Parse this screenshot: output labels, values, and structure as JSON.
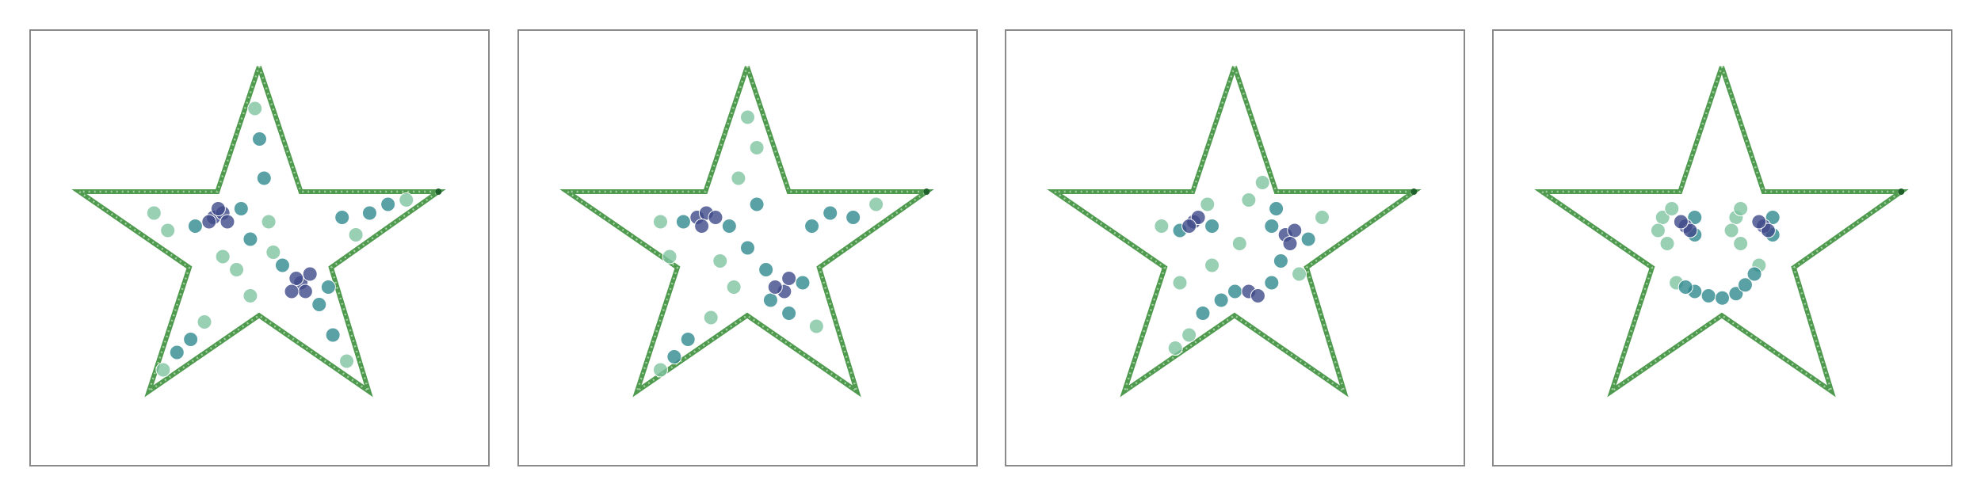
{
  "chart_data": [
    {
      "type": "scatter",
      "xlim": [
        0,
        10
      ],
      "ylim": [
        0,
        10
      ],
      "outline": {
        "color": "#4f9a4f",
        "x": [
          4.99,
          5.9,
          8.9,
          6.56,
          7.38,
          4.99,
          2.59,
          3.47,
          1.07,
          4.08,
          4.99
        ],
        "y": [
          9.16,
          6.29,
          6.29,
          4.55,
          1.71,
          3.45,
          1.71,
          4.55,
          6.29,
          6.29,
          9.16
        ]
      },
      "series": [
        {
          "color": "#3e4a89",
          "x": [
            4.0,
            4.2,
            3.9,
            4.3,
            4.1,
            5.9,
            6.0,
            5.8,
            6.1,
            5.7
          ],
          "y": [
            5.7,
            5.8,
            5.6,
            5.6,
            5.9,
            4.2,
            4.0,
            4.3,
            4.4,
            4.0
          ]
        },
        {
          "color": "#2f8a8e",
          "x": [
            3.6,
            4.6,
            4.8,
            5.5,
            6.3,
            6.5,
            7.4,
            7.8,
            6.8,
            3.5,
            3.2,
            5.0,
            5.1,
            6.6
          ],
          "y": [
            5.5,
            5.9,
            5.2,
            4.6,
            3.7,
            4.1,
            5.8,
            6.0,
            5.7,
            2.9,
            2.6,
            7.5,
            6.6,
            3.0
          ]
        },
        {
          "color": "#7fc3a0",
          "x": [
            3.0,
            2.7,
            4.5,
            4.8,
            5.2,
            8.2,
            7.1,
            3.8,
            2.9,
            4.2,
            6.9,
            5.3,
            4.9
          ],
          "y": [
            5.4,
            5.8,
            4.5,
            3.9,
            5.6,
            6.1,
            5.3,
            3.3,
            2.2,
            4.8,
            2.4,
            4.9,
            8.2
          ]
        }
      ]
    },
    {
      "type": "scatter",
      "xlim": [
        0,
        10
      ],
      "ylim": [
        0,
        10
      ],
      "outline": {
        "color": "#4f9a4f",
        "x": [
          4.99,
          5.9,
          8.9,
          6.56,
          7.38,
          4.99,
          2.59,
          3.47,
          1.07,
          4.08,
          4.99
        ],
        "y": [
          9.16,
          6.29,
          6.29,
          4.55,
          1.71,
          3.45,
          1.71,
          4.55,
          6.29,
          6.29,
          9.16
        ]
      },
      "series": [
        {
          "color": "#3e4a89",
          "x": [
            3.9,
            4.1,
            4.0,
            4.3,
            5.8,
            5.9,
            5.6
          ],
          "y": [
            5.7,
            5.8,
            5.5,
            5.7,
            4.0,
            4.3,
            4.1
          ]
        },
        {
          "color": "#2f8a8e",
          "x": [
            3.6,
            4.6,
            5.0,
            5.4,
            6.2,
            6.8,
            7.3,
            5.9,
            3.7,
            3.4,
            5.2,
            6.4,
            5.5
          ],
          "y": [
            5.6,
            5.5,
            5.0,
            4.5,
            4.2,
            5.8,
            5.7,
            3.5,
            2.9,
            2.5,
            6.0,
            5.5,
            3.8
          ]
        },
        {
          "color": "#7fc3a0",
          "x": [
            3.1,
            3.3,
            4.7,
            5.2,
            5.0,
            7.8,
            4.2,
            3.1,
            6.5,
            4.8,
            4.4
          ],
          "y": [
            5.6,
            4.8,
            4.1,
            7.3,
            8.0,
            6.0,
            3.4,
            2.2,
            3.2,
            6.6,
            4.7
          ]
        }
      ]
    },
    {
      "type": "scatter",
      "xlim": [
        0,
        10
      ],
      "ylim": [
        0,
        10
      ],
      "outline": {
        "color": "#4f9a4f",
        "x": [
          4.99,
          5.9,
          8.9,
          6.56,
          7.38,
          4.99,
          2.59,
          3.47,
          1.07,
          4.08,
          4.99
        ],
        "y": [
          9.16,
          6.29,
          6.29,
          4.55,
          1.71,
          3.45,
          1.71,
          4.55,
          6.29,
          6.29,
          9.16
        ]
      },
      "series": [
        {
          "color": "#3e4a89",
          "x": [
            4.1,
            4.2,
            4.0,
            6.1,
            6.3,
            6.2,
            5.3,
            5.5
          ],
          "y": [
            5.6,
            5.7,
            5.5,
            5.3,
            5.4,
            5.1,
            4.0,
            3.9
          ]
        },
        {
          "color": "#2f8a8e",
          "x": [
            3.8,
            4.5,
            5.8,
            6.6,
            5.0,
            5.8,
            4.3,
            4.7,
            5.9,
            6.0
          ],
          "y": [
            5.4,
            5.5,
            5.5,
            5.2,
            4.0,
            4.2,
            3.5,
            3.8,
            5.9,
            4.7
          ]
        },
        {
          "color": "#7fc3a0",
          "x": [
            3.4,
            4.4,
            5.3,
            6.9,
            4.0,
            3.7,
            4.5,
            5.6,
            5.1,
            6.4,
            3.8
          ],
          "y": [
            5.5,
            6.0,
            6.1,
            5.7,
            3.0,
            2.7,
            4.6,
            6.5,
            5.1,
            4.4,
            4.2
          ]
        }
      ]
    },
    {
      "type": "scatter",
      "xlim": [
        0,
        10
      ],
      "ylim": [
        0,
        10
      ],
      "outline": {
        "color": "#4f9a4f",
        "x": [
          4.99,
          5.9,
          8.9,
          6.56,
          7.38,
          4.99,
          2.59,
          3.47,
          1.07,
          4.08,
          4.99
        ],
        "y": [
          9.16,
          6.29,
          6.29,
          4.55,
          1.71,
          3.45,
          1.71,
          4.55,
          6.29,
          6.29,
          9.16
        ]
      },
      "series": [
        {
          "color": "#3e4a89",
          "x": [
            4.2,
            4.3,
            4.1,
            5.9,
            6.0,
            5.8
          ],
          "y": [
            5.5,
            5.4,
            5.6,
            5.5,
            5.4,
            5.6
          ]
        },
        {
          "color": "#2f8a8e",
          "x": [
            4.4,
            4.4,
            6.1,
            6.1,
            4.4,
            4.7,
            5.0,
            5.3,
            5.5,
            4.2,
            5.7
          ],
          "y": [
            5.3,
            5.7,
            5.3,
            5.7,
            4.0,
            3.9,
            3.85,
            3.95,
            4.15,
            4.1,
            4.4
          ]
        },
        {
          "color": "#7fc3a0",
          "x": [
            3.7,
            3.6,
            3.8,
            3.9,
            5.3,
            5.4,
            5.2,
            5.4,
            4.0,
            5.8
          ],
          "y": [
            5.7,
            5.4,
            5.1,
            5.9,
            5.7,
            5.9,
            5.4,
            5.1,
            4.2,
            4.6
          ]
        }
      ]
    }
  ]
}
